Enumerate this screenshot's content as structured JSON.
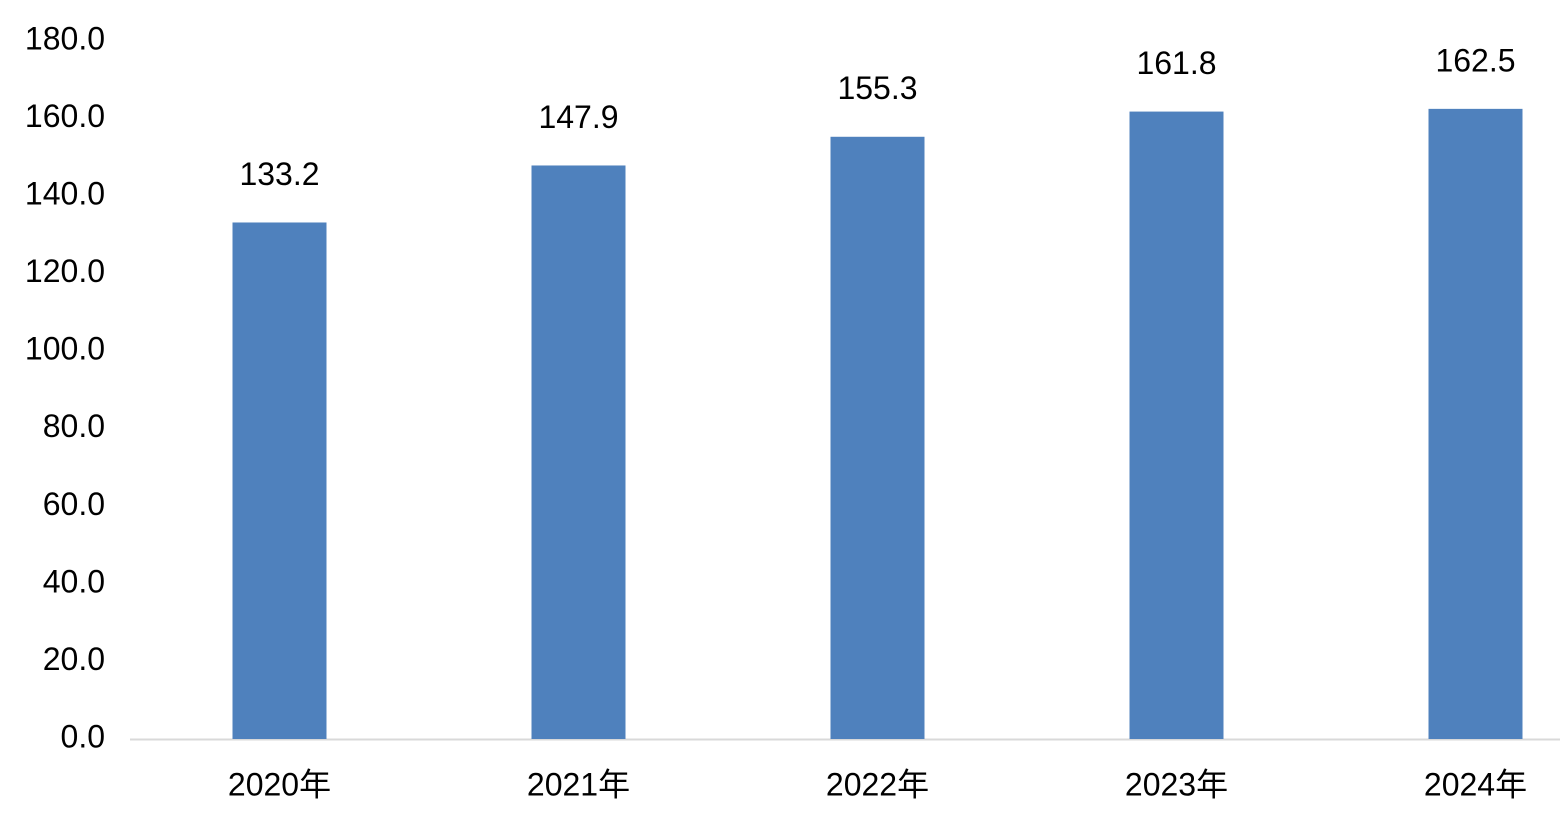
{
  "chart_data": {
    "type": "bar",
    "categories": [
      "2020年",
      "2021年",
      "2022年",
      "2023年",
      "2024年"
    ],
    "values": [
      133.2,
      147.9,
      155.3,
      161.8,
      162.5
    ],
    "color": "#4f81bd",
    "ylim": [
      0,
      180
    ],
    "yticks": [
      {
        "value": 0,
        "label": "0.0"
      },
      {
        "value": 20,
        "label": "20.0"
      },
      {
        "value": 40,
        "label": "40.0"
      },
      {
        "value": 60,
        "label": "60.0"
      },
      {
        "value": 80,
        "label": "80.0"
      },
      {
        "value": 100,
        "label": "100.0"
      },
      {
        "value": 120,
        "label": "120.0"
      },
      {
        "value": 140,
        "label": "140.0"
      },
      {
        "value": 160,
        "label": "160.0"
      },
      {
        "value": 180,
        "label": "180.0"
      }
    ],
    "grid": false
  }
}
